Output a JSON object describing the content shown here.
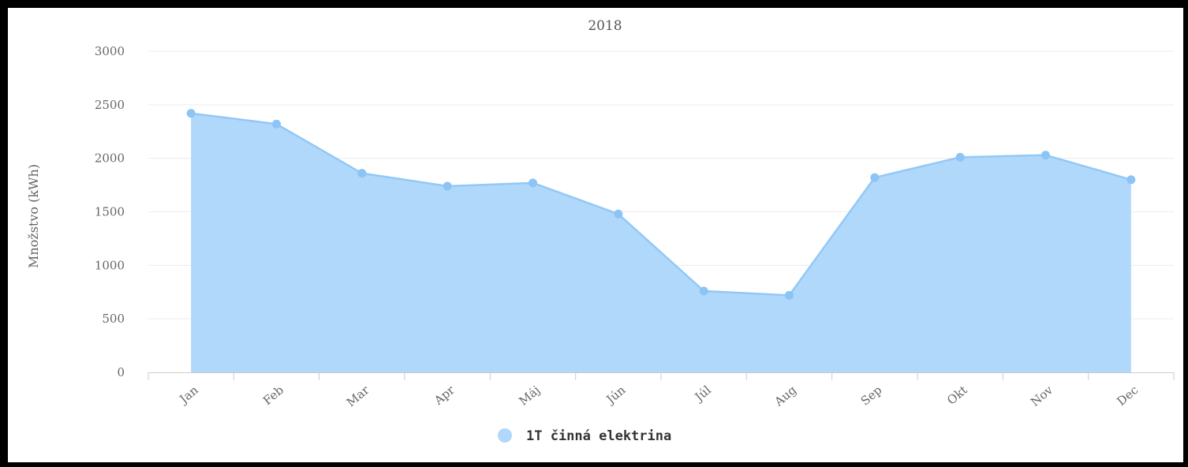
{
  "chart_data": {
    "type": "area",
    "title": "2018",
    "xlabel": "",
    "ylabel": "Množstvo (kWh)",
    "categories": [
      "Jan",
      "Feb",
      "Mar",
      "Apr",
      "Máj",
      "Jún",
      "Júl",
      "Aug",
      "Sep",
      "Okt",
      "Nov",
      "Dec"
    ],
    "series": [
      {
        "name": "1T činná elektrina",
        "values": [
          2420,
          2320,
          1860,
          1740,
          1770,
          1480,
          760,
          720,
          1820,
          2010,
          2030,
          1800
        ]
      }
    ],
    "ylim": [
      0,
      3000
    ],
    "yticks": [
      "0",
      "500",
      "1000",
      "1500",
      "2000",
      "2500",
      "3000"
    ],
    "grid": true,
    "legend": "bottom-center",
    "colors": {
      "fill": "#b0d8fb",
      "line": "#92c8f7",
      "marker": "#8cc4f5",
      "grid": "#ececec",
      "axis": "#cccccc"
    }
  }
}
